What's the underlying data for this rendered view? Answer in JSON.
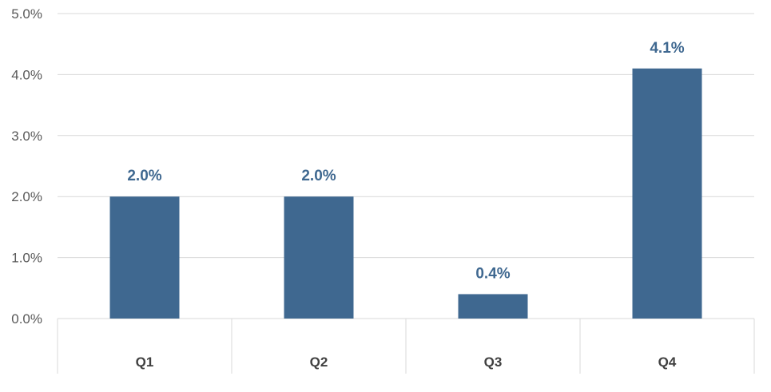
{
  "chart_data": {
    "type": "bar",
    "categories": [
      "Q1",
      "Q2",
      "Q3",
      "Q4"
    ],
    "values": [
      2.0,
      2.0,
      0.4,
      4.1
    ],
    "data_labels": [
      "2.0%",
      "2.0%",
      "0.4%",
      "4.1%"
    ],
    "y_ticks": [
      0,
      1,
      2,
      3,
      4,
      5
    ],
    "y_tick_labels": [
      "0.0%",
      "1.0%",
      "2.0%",
      "3.0%",
      "4.0%",
      "5.0%"
    ],
    "ylim": [
      0,
      5
    ],
    "grid": true,
    "legend": "none",
    "colors": {
      "bar": "#3f6890",
      "data_label": "#3f6890",
      "gridline": "#d9d9d9",
      "axis_text": "#595959",
      "category_text": "#404040"
    }
  }
}
